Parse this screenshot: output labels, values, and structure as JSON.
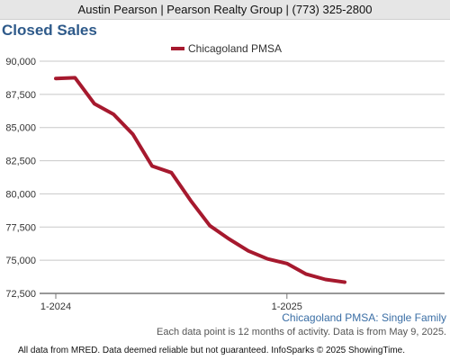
{
  "header": {
    "agent": "Austin Pearson | Pearson Realty Group | (773) 325-2800"
  },
  "chart_data": {
    "type": "line",
    "title": "Closed Sales",
    "xlabel": "",
    "ylabel": "",
    "x_ticks": [
      "1-2024",
      "1-2025"
    ],
    "ylim": [
      72500,
      90000
    ],
    "y_ticks": [
      72500,
      75000,
      77500,
      80000,
      82500,
      85000,
      87500,
      90000
    ],
    "y_tick_labels": [
      "72,500",
      "75,000",
      "77,500",
      "80,000",
      "82,500",
      "85,000",
      "87,500",
      "90,000"
    ],
    "grid": true,
    "legend_position": "top",
    "series": [
      {
        "name": "Chicagoland PMSA",
        "color": "#a6192e",
        "x": [
          "1-2024",
          "2-2024",
          "3-2024",
          "4-2024",
          "5-2024",
          "6-2024",
          "7-2024",
          "8-2024",
          "9-2024",
          "10-2024",
          "11-2024",
          "12-2024",
          "1-2025",
          "2-2025",
          "3-2025",
          "4-2025"
        ],
        "values": [
          88700,
          88750,
          86800,
          86000,
          84500,
          82100,
          81600,
          79500,
          77600,
          76600,
          75700,
          75100,
          74750,
          73950,
          73550,
          73350
        ]
      }
    ]
  },
  "footer": {
    "subtitle": "Chicagoland PMSA: Single Family",
    "note": "Each data point is 12 months of activity. Data is from May 9, 2025.",
    "disclaimer": "All data from MRED. Data deemed reliable but not guaranteed. InfoSparks © 2025 ShowingTime."
  }
}
